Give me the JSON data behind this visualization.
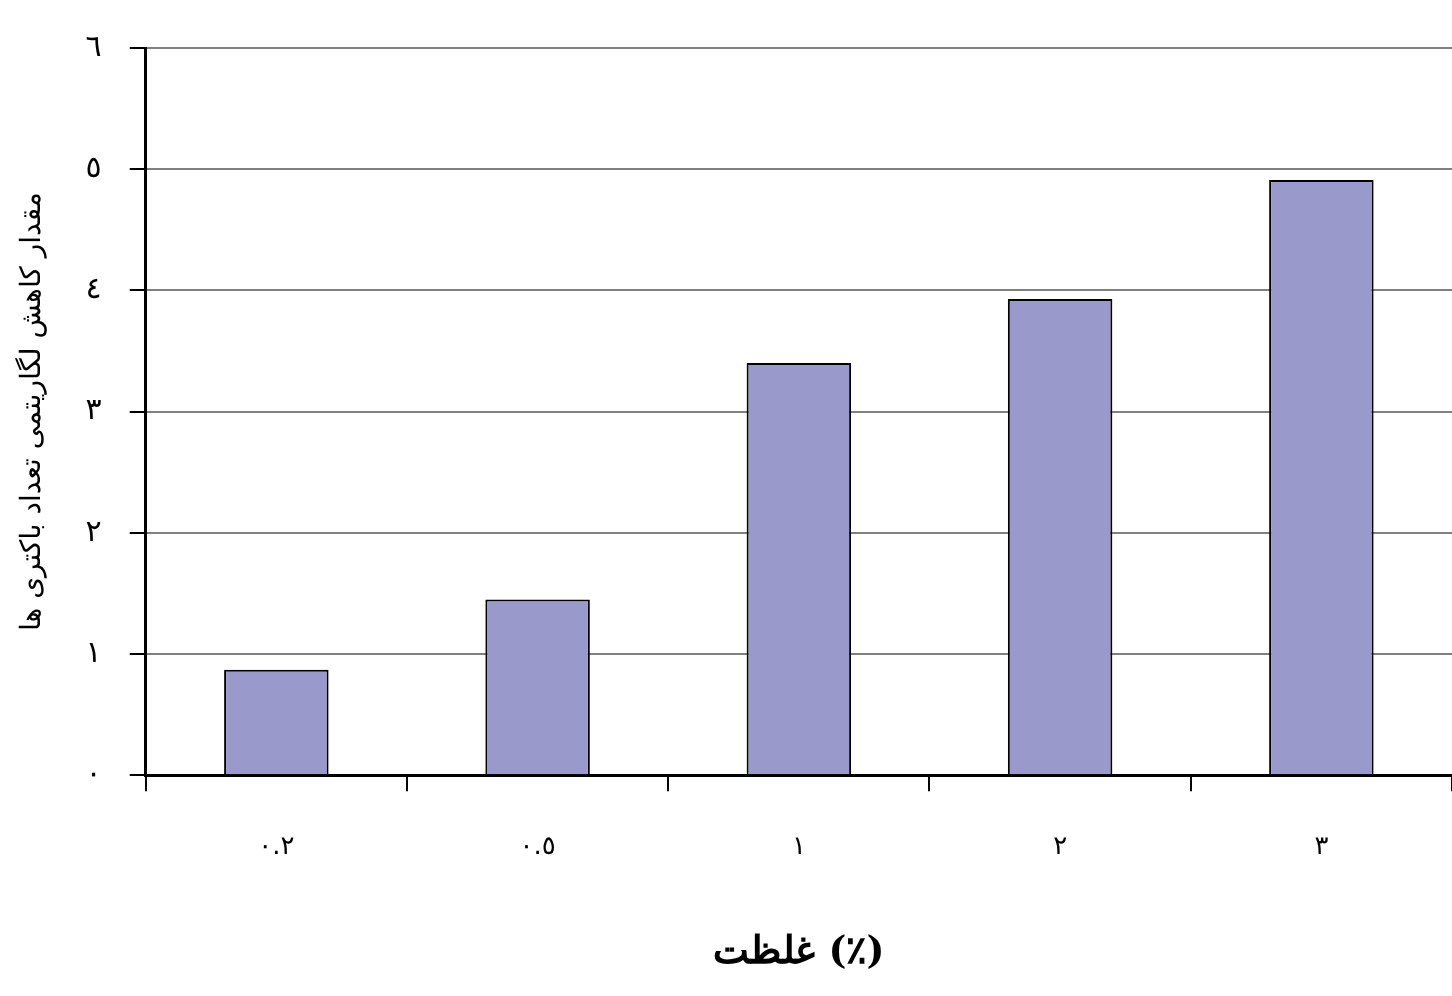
{
  "chart_data": {
    "type": "bar",
    "xlabel": "غلظت (٪)",
    "ylabel": "مقدار کاهش لگاریتمی تعداد باکتری ها",
    "categories": [
      "٠.٢",
      "٠.٥",
      "١",
      "٢",
      "٣"
    ],
    "values": [
      0.87,
      1.45,
      3.4,
      3.93,
      4.91
    ],
    "color": "#9999cc",
    "ylim": [
      0,
      6
    ],
    "yticks": [
      {
        "value": 0,
        "label": "٠"
      },
      {
        "value": 1,
        "label": "١"
      },
      {
        "value": 2,
        "label": "٢"
      },
      {
        "value": 3,
        "label": "٣"
      },
      {
        "value": 4,
        "label": "٤"
      },
      {
        "value": 5,
        "label": "٥"
      },
      {
        "value": 6,
        "label": "٦"
      }
    ],
    "grid": "y",
    "legend": false
  }
}
